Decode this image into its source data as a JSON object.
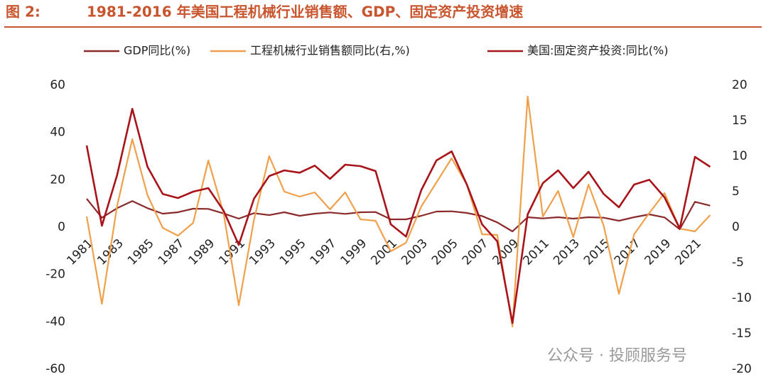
{
  "figure_label": "图 2:",
  "chart_data": {
    "type": "line",
    "title": "1981-2016 年美国工程机械行业销售额、GDP、固定资产投资增速",
    "watermark": "公众号 · 投顾服务号",
    "x": [
      1981,
      1982,
      1983,
      1984,
      1985,
      1986,
      1987,
      1988,
      1989,
      1990,
      1991,
      1992,
      1993,
      1994,
      1995,
      1996,
      1997,
      1998,
      1999,
      2000,
      2001,
      2002,
      2003,
      2004,
      2005,
      2006,
      2007,
      2008,
      2009,
      2010,
      2011,
      2012,
      2013,
      2014,
      2015,
      2016,
      2017,
      2018,
      2019,
      2020,
      2021,
      2022
    ],
    "xlim": [
      1980,
      2023
    ],
    "xticks": [
      1981,
      1983,
      1985,
      1987,
      1989,
      1991,
      1993,
      1995,
      1997,
      1999,
      2001,
      2003,
      2005,
      2007,
      2009,
      2011,
      2013,
      2015,
      2017,
      2019,
      2021
    ],
    "ylim": [
      -60,
      60
    ],
    "yticks": [
      -60,
      -40,
      -20,
      0,
      20,
      40,
      60
    ],
    "y2lim": [
      -20,
      20
    ],
    "y2ticks": [
      -20,
      -15,
      -10,
      -5,
      0,
      5,
      10,
      15,
      20
    ],
    "grid": false,
    "legend": "top",
    "series": [
      {
        "name": "GDP同比(%)",
        "color": "#8b2a2a",
        "axis": "y",
        "values": [
          12,
          4,
          8,
          11,
          8,
          5.7,
          6.3,
          7.8,
          7.7,
          5.8,
          3.6,
          5.9,
          5.1,
          6.3,
          4.8,
          5.7,
          6.2,
          5.6,
          6.3,
          6.4,
          3.3,
          3.3,
          4.8,
          6.6,
          6.7,
          6.0,
          4.7,
          2.0,
          -1.8,
          4.2,
          3.7,
          4.2,
          3.6,
          4.2,
          4.0,
          2.7,
          4.2,
          5.4,
          4.1,
          -0.9,
          10.7,
          9.1
        ]
      },
      {
        "name": "工程机械行业销售额同比(右,%)",
        "color": "#f0a04b",
        "axis": "y2",
        "values": [
          1.5,
          -10.8,
          3,
          12.4,
          4.5,
          -0.1,
          -1.2,
          0.6,
          9.4,
          2,
          -11,
          1,
          10,
          5,
          4.3,
          4.9,
          2.5,
          4.9,
          1.1,
          0.9,
          -3.4,
          -2.2,
          2.9,
          6.3,
          9.7,
          6,
          -1,
          -1.1,
          -14,
          18.4,
          1.5,
          5.1,
          -1.4,
          6,
          0.2,
          -9.4,
          -1,
          2,
          4.8,
          -0.2,
          -0.6,
          1.7
        ]
      },
      {
        "name": "美国:固定资产投资:同比(%)",
        "color": "#a8141a",
        "axis": "y",
        "values": [
          34.5,
          0.6,
          22,
          50,
          25.5,
          14,
          12.3,
          15,
          16.5,
          7,
          -7.5,
          12,
          21.6,
          24,
          23,
          26,
          20.4,
          26.4,
          25.8,
          23.7,
          1.2,
          -4,
          15.6,
          28.2,
          32,
          18,
          1.2,
          -6,
          -40.5,
          5.4,
          18.6,
          24,
          16.5,
          23.4,
          14,
          8.4,
          18,
          20,
          12.6,
          -0.6,
          29.7,
          25.5
        ]
      }
    ]
  }
}
